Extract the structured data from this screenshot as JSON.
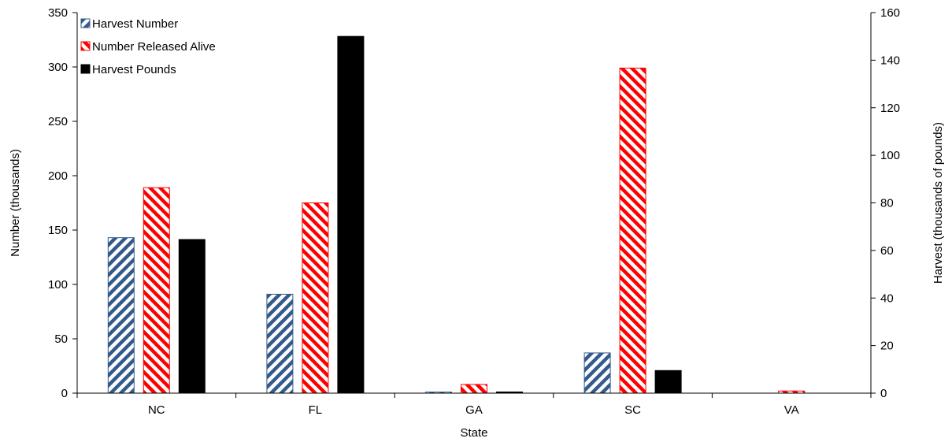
{
  "chart_data": {
    "type": "bar",
    "xlabel": "State",
    "ylabel": "Number (thousands)",
    "y2label": "Harvest (thousands of pounds)",
    "categories": [
      "NC",
      "FL",
      "GA",
      "SC",
      "VA"
    ],
    "ylim": [
      0,
      350
    ],
    "y2lim": [
      0,
      160
    ],
    "yticks": [
      "0",
      "50",
      "100",
      "150",
      "200",
      "250",
      "300",
      "350"
    ],
    "y2ticks": [
      "0",
      "20",
      "40",
      "60",
      "80",
      "100",
      "120",
      "140",
      "160"
    ],
    "legend_position": "top-left",
    "grid": false,
    "series": [
      {
        "name": "Harvest Number",
        "axis": "left",
        "pattern": "blue-diagonal-hatch",
        "color": "#335a8c",
        "values": [
          143,
          91,
          1,
          37,
          0
        ]
      },
      {
        "name": "Number Released Alive",
        "axis": "left",
        "pattern": "red-diagonal-hatch",
        "color": "#ff0000",
        "values": [
          189,
          175,
          8,
          299,
          2
        ]
      },
      {
        "name": "Harvest Pounds",
        "axis": "right",
        "pattern": "solid",
        "color": "#000000",
        "values": [
          64.6,
          150,
          0.5,
          9.5,
          0
        ]
      }
    ]
  }
}
